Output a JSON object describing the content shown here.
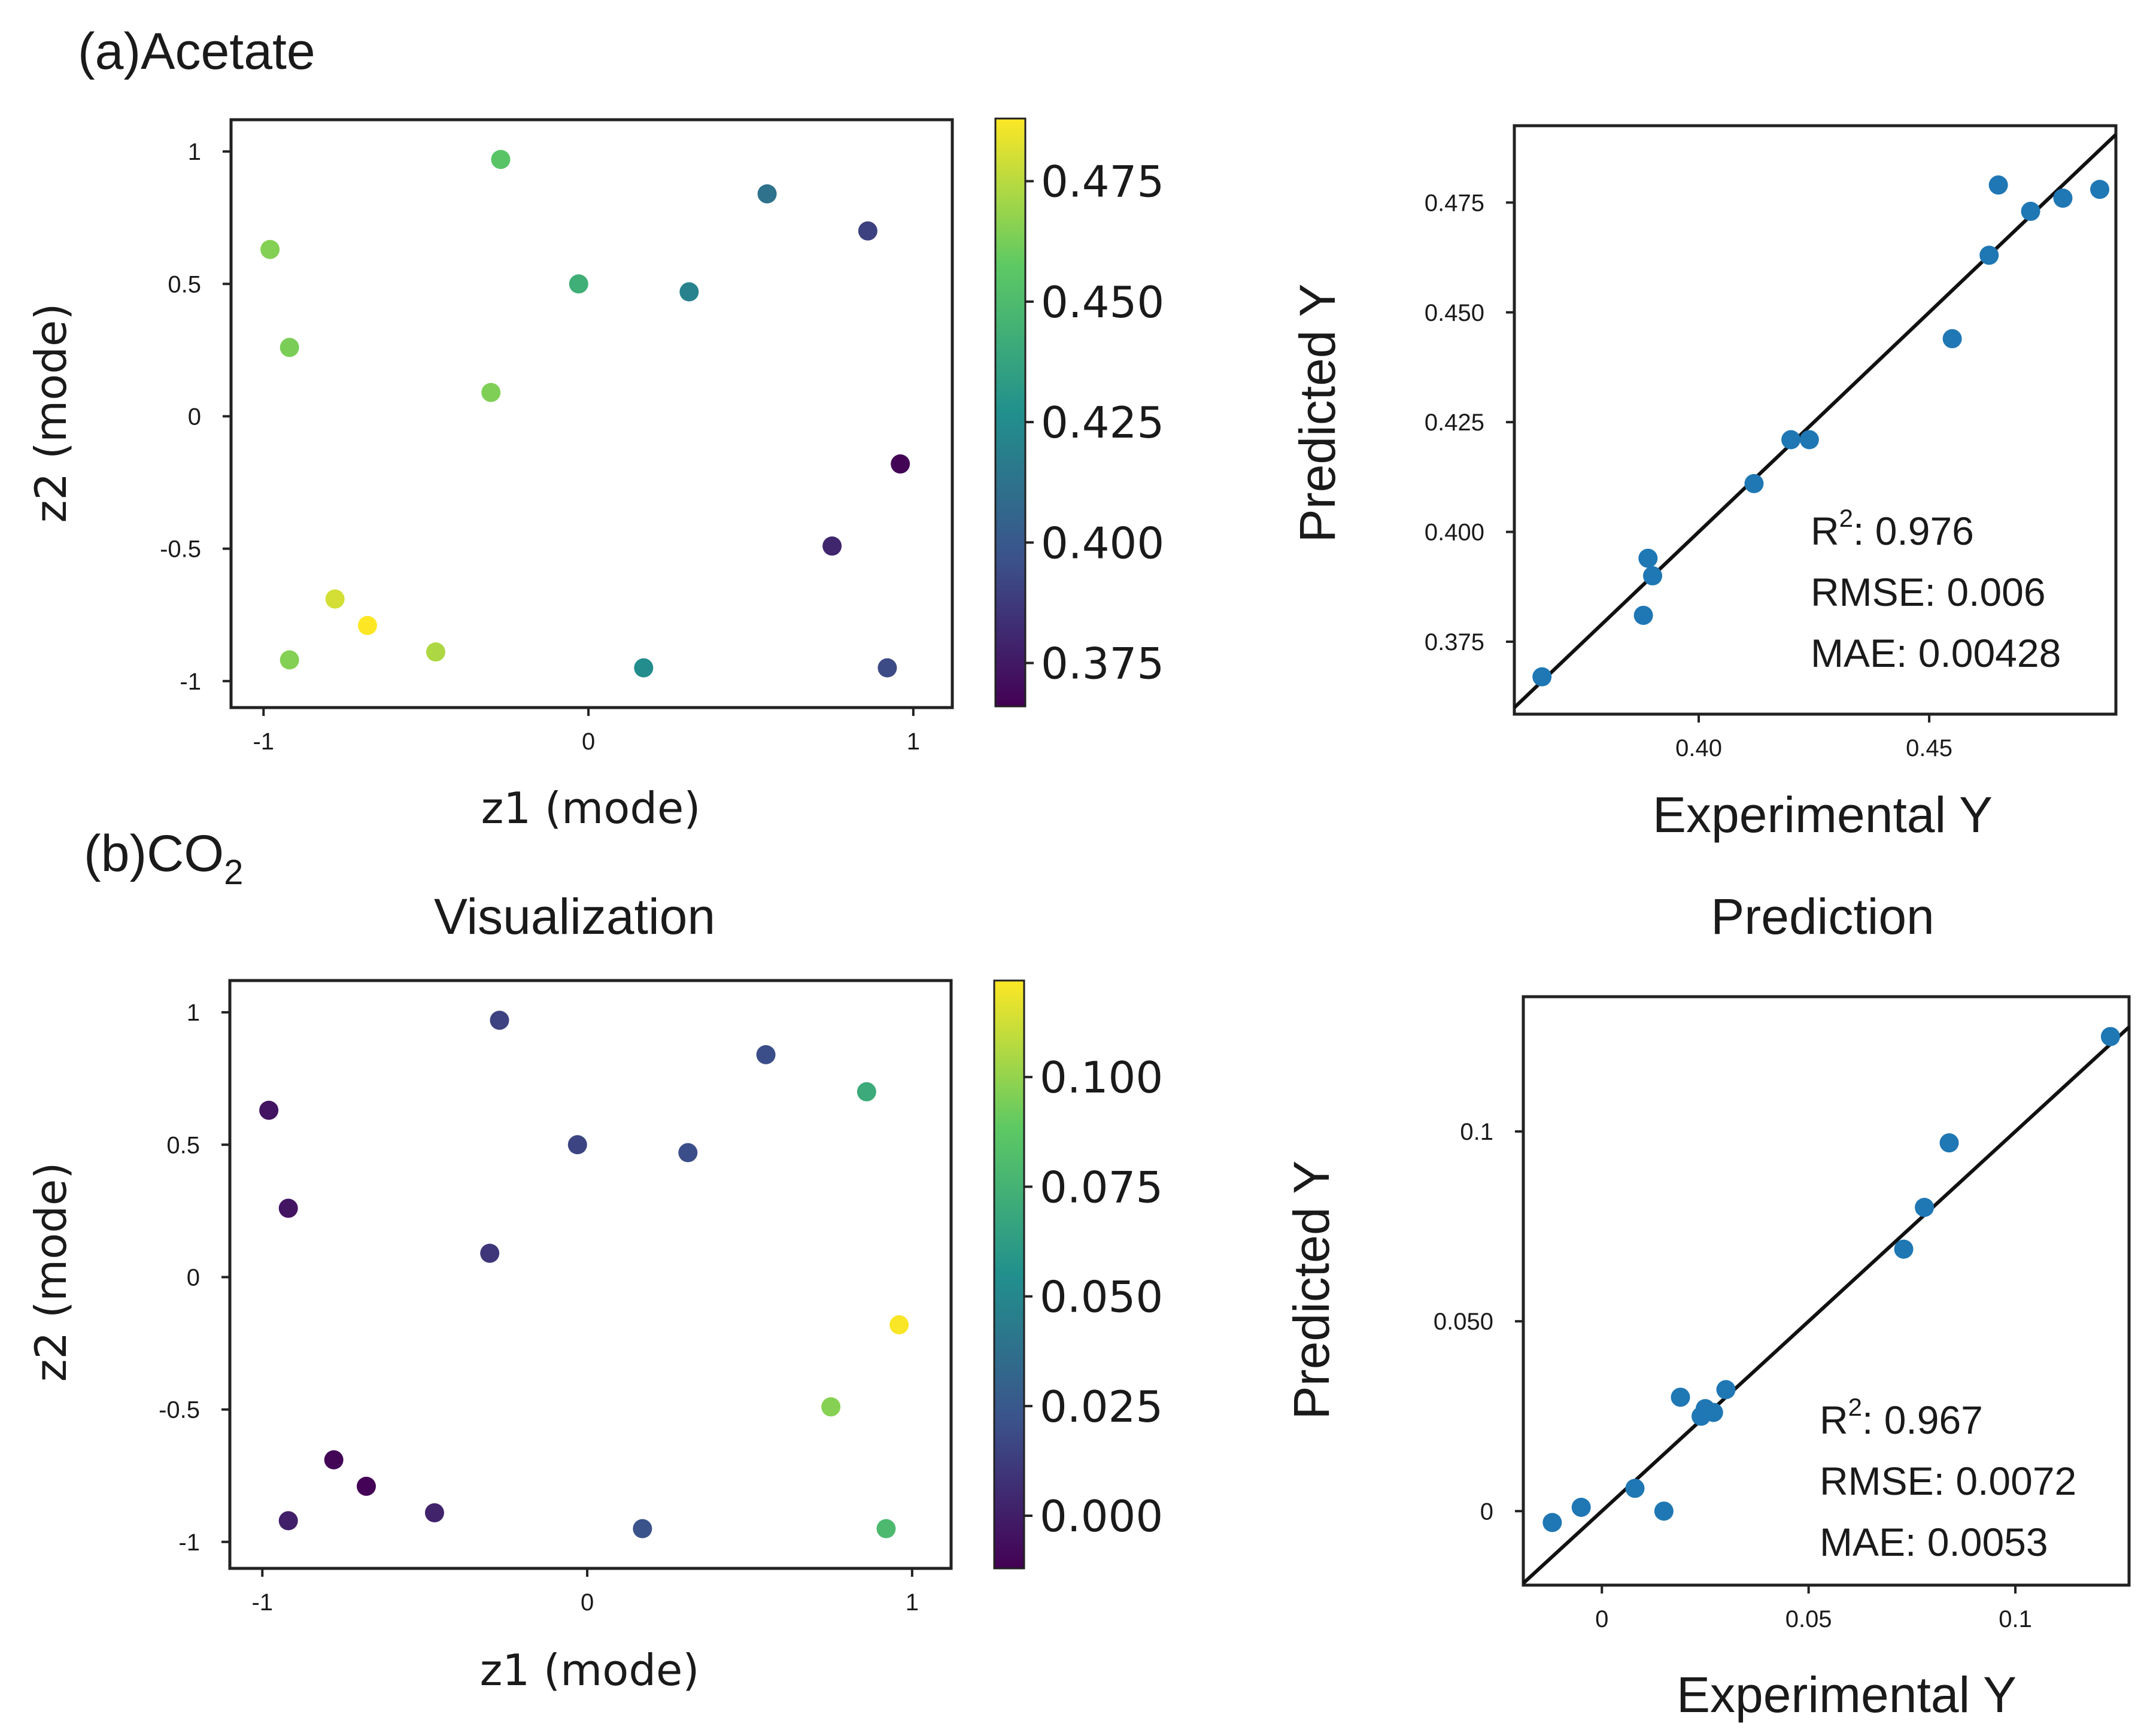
{
  "figure": {
    "panel_a_label": "(a)Acetate",
    "panel_b_label_prefix": "(b)CO",
    "panel_b_label_sub": "2",
    "title_left": "Visualization",
    "title_right": "Prediction"
  },
  "colormap": [
    "#440154",
    "#3b528b",
    "#21908d",
    "#5dc963",
    "#fde725"
  ],
  "marker_color": "#1f77b4",
  "chart_data": [
    {
      "id": "acetate-latent",
      "type": "scatter",
      "xlabel": "z1 (mode)",
      "ylabel": "z2 (mode)",
      "xlim": [
        -1.1,
        1.12
      ],
      "ylim": [
        -1.1,
        1.12
      ],
      "xticks": [
        -1,
        0,
        1
      ],
      "yticks": [
        1,
        0.5,
        0,
        -0.5,
        -1
      ],
      "xtick_labels": [
        "-1",
        "0",
        "1"
      ],
      "ytick_labels": [
        "1",
        "0.5",
        "0",
        "-0.5",
        "-1"
      ],
      "colorbar": {
        "range": [
          0.366,
          0.488
        ],
        "ticks": [
          0.475,
          0.45,
          0.425,
          0.4,
          0.375
        ],
        "tick_labels": [
          "0.475",
          "0.450",
          "0.425",
          "0.400",
          "0.375"
        ]
      },
      "points": [
        {
          "x": -0.27,
          "y": 0.97,
          "c": 0.455
        },
        {
          "x": 0.55,
          "y": 0.84,
          "c": 0.412
        },
        {
          "x": 0.86,
          "y": 0.7,
          "c": 0.39
        },
        {
          "x": -0.98,
          "y": 0.63,
          "c": 0.465
        },
        {
          "x": -0.03,
          "y": 0.5,
          "c": 0.443
        },
        {
          "x": 0.31,
          "y": 0.47,
          "c": 0.42
        },
        {
          "x": -0.92,
          "y": 0.26,
          "c": 0.463
        },
        {
          "x": -0.3,
          "y": 0.09,
          "c": 0.464
        },
        {
          "x": 0.96,
          "y": -0.18,
          "c": 0.367
        },
        {
          "x": 0.75,
          "y": -0.49,
          "c": 0.38
        },
        {
          "x": -0.78,
          "y": -0.69,
          "c": 0.48
        },
        {
          "x": -0.68,
          "y": -0.79,
          "c": 0.488
        },
        {
          "x": -0.47,
          "y": -0.89,
          "c": 0.473
        },
        {
          "x": -0.92,
          "y": -0.92,
          "c": 0.465
        },
        {
          "x": 0.17,
          "y": -0.95,
          "c": 0.425
        },
        {
          "x": 0.92,
          "y": -0.95,
          "c": 0.394
        }
      ]
    },
    {
      "id": "acetate-parity",
      "type": "scatter",
      "xlabel": "Experimental Y",
      "ylabel": "Predicted Y",
      "xlim": [
        0.36,
        0.4905
      ],
      "ylim": [
        0.3585,
        0.4925
      ],
      "xticks": [
        0.4,
        0.45
      ],
      "yticks": [
        0.475,
        0.45,
        0.425,
        0.4,
        0.375
      ],
      "xtick_labels": [
        "0.40",
        "0.45"
      ],
      "ytick_labels": [
        "0.475",
        "0.450",
        "0.425",
        "0.400",
        "0.375"
      ],
      "diagonal": true,
      "metrics": {
        "r2_label": "R",
        "r2_sup": "2",
        "r2_value": ": 0.976",
        "rmse": "RMSE: 0.006",
        "mae": "MAE: 0.00428"
      },
      "points": [
        {
          "x": 0.366,
          "y": 0.367
        },
        {
          "x": 0.388,
          "y": 0.381
        },
        {
          "x": 0.389,
          "y": 0.394
        },
        {
          "x": 0.39,
          "y": 0.39
        },
        {
          "x": 0.412,
          "y": 0.411
        },
        {
          "x": 0.42,
          "y": 0.421
        },
        {
          "x": 0.424,
          "y": 0.421
        },
        {
          "x": 0.455,
          "y": 0.444
        },
        {
          "x": 0.463,
          "y": 0.463
        },
        {
          "x": 0.465,
          "y": 0.479
        },
        {
          "x": 0.472,
          "y": 0.473
        },
        {
          "x": 0.479,
          "y": 0.476
        },
        {
          "x": 0.487,
          "y": 0.478
        }
      ]
    },
    {
      "id": "co2-latent",
      "type": "scatter",
      "xlabel": "z1 (mode)",
      "ylabel": "z2 (mode)",
      "xlim": [
        -1.1,
        1.12
      ],
      "ylim": [
        -1.1,
        1.12
      ],
      "xticks": [
        -1,
        0,
        1
      ],
      "yticks": [
        1,
        0.5,
        0,
        -0.5,
        -1
      ],
      "xtick_labels": [
        "-1",
        "0",
        "1"
      ],
      "ytick_labels": [
        "1",
        "0.5",
        "0",
        "-0.5",
        "-1"
      ],
      "colorbar": {
        "range": [
          -0.012,
          0.122
        ],
        "ticks": [
          0.1,
          0.075,
          0.05,
          0.025,
          0.0
        ],
        "tick_labels": [
          "0.100",
          "0.075",
          "0.050",
          "0.025",
          "0.000"
        ]
      },
      "points": [
        {
          "x": -0.27,
          "y": 0.97,
          "c": 0.015
        },
        {
          "x": 0.55,
          "y": 0.84,
          "c": 0.02
        },
        {
          "x": 0.86,
          "y": 0.7,
          "c": 0.07
        },
        {
          "x": -0.98,
          "y": 0.63,
          "c": -0.004
        },
        {
          "x": -0.03,
          "y": 0.5,
          "c": 0.016
        },
        {
          "x": 0.31,
          "y": 0.47,
          "c": 0.02
        },
        {
          "x": -0.92,
          "y": 0.26,
          "c": -0.004
        },
        {
          "x": -0.3,
          "y": 0.09,
          "c": 0.01
        },
        {
          "x": 0.96,
          "y": -0.18,
          "c": 0.121
        },
        {
          "x": 0.75,
          "y": -0.49,
          "c": 0.097
        },
        {
          "x": -0.78,
          "y": -0.69,
          "c": -0.01
        },
        {
          "x": -0.68,
          "y": -0.79,
          "c": -0.011
        },
        {
          "x": -0.47,
          "y": -0.89,
          "c": 0.002
        },
        {
          "x": -0.92,
          "y": -0.92,
          "c": 0.001
        },
        {
          "x": 0.17,
          "y": -0.95,
          "c": 0.022
        },
        {
          "x": 0.92,
          "y": -0.95,
          "c": 0.079
        }
      ]
    },
    {
      "id": "co2-parity",
      "type": "scatter",
      "xlabel": "Experimental Y",
      "ylabel": "Predicted Y",
      "xlim": [
        -0.019,
        0.1275
      ],
      "ylim": [
        -0.0195,
        0.1355
      ],
      "xticks": [
        0,
        0.05,
        0.1
      ],
      "yticks": [
        0.1,
        0.05,
        0
      ],
      "xtick_labels": [
        "0",
        "0.05",
        "0.1"
      ],
      "ytick_labels": [
        "0.1",
        "0.050",
        "0"
      ],
      "diagonal": true,
      "metrics": {
        "r2_label": "R",
        "r2_sup": "2",
        "r2_value": ": 0.967",
        "rmse": "RMSE: 0.0072",
        "mae": "MAE: 0.0053"
      },
      "points": [
        {
          "x": -0.012,
          "y": -0.003
        },
        {
          "x": -0.005,
          "y": 0.001
        },
        {
          "x": 0.008,
          "y": 0.006
        },
        {
          "x": 0.015,
          "y": 0.0
        },
        {
          "x": 0.019,
          "y": 0.03
        },
        {
          "x": 0.024,
          "y": 0.025
        },
        {
          "x": 0.025,
          "y": 0.027
        },
        {
          "x": 0.027,
          "y": 0.026
        },
        {
          "x": 0.03,
          "y": 0.032
        },
        {
          "x": 0.073,
          "y": 0.069
        },
        {
          "x": 0.078,
          "y": 0.08
        },
        {
          "x": 0.084,
          "y": 0.097
        },
        {
          "x": 0.123,
          "y": 0.125
        }
      ]
    }
  ]
}
